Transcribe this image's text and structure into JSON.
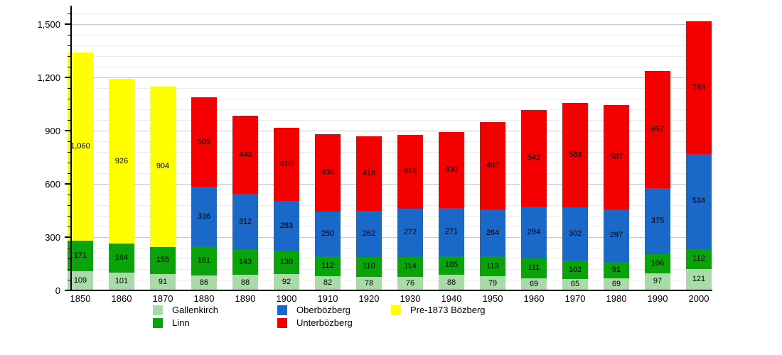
{
  "chart_data": {
    "type": "bar",
    "stacked": true,
    "title": "",
    "xlabel": "",
    "ylabel": "",
    "categories": [
      "1850",
      "1860",
      "1870",
      "1880",
      "1890",
      "1900",
      "1910",
      "1920",
      "1930",
      "1940",
      "1950",
      "1960",
      "1970",
      "1980",
      "1990",
      "2000"
    ],
    "series": [
      {
        "name": "Gallenkirch",
        "color": "#a9dba9",
        "values": [
          109,
          101,
          91,
          86,
          88,
          92,
          82,
          78,
          76,
          88,
          79,
          69,
          65,
          69,
          97,
          121
        ]
      },
      {
        "name": "Linn",
        "color": "#0aa30a",
        "values": [
          171,
          164,
          155,
          161,
          143,
          130,
          112,
          110,
          114,
          105,
          113,
          111,
          102,
          91,
          106,
          112
        ]
      },
      {
        "name": "Oberbözberg",
        "color": "#1a68c8",
        "values": [
          0,
          0,
          0,
          336,
          312,
          283,
          250,
          262,
          272,
          271,
          264,
          294,
          302,
          297,
          375,
          534
        ]
      },
      {
        "name": "Unterbözberg",
        "color": "#f40000",
        "values": [
          0,
          0,
          0,
          505,
          440,
          410,
          436,
          418,
          416,
          430,
          492,
          542,
          588,
          587,
          657,
          749
        ]
      },
      {
        "name": "Pre-1873 Bözberg",
        "color": "#ffff00",
        "values": [
          1060,
          926,
          904,
          0,
          0,
          0,
          0,
          0,
          0,
          0,
          0,
          0,
          0,
          0,
          0,
          0
        ]
      }
    ],
    "y_ticks": [
      0,
      300,
      600,
      900,
      1200,
      1500
    ],
    "ylim": [
      0,
      1580
    ],
    "minor_tick_step": 60,
    "grid": true,
    "legend_position": "bottom",
    "bar_value_labels": true,
    "axis_color": "#000000",
    "minor_grid_color": "#ebebeb",
    "major_grid_color": "#c9c9c9"
  },
  "legend": {
    "columns": [
      [
        "Gallenkirch",
        "Linn"
      ],
      [
        "Oberbözberg",
        "Unterbözberg"
      ],
      [
        "Pre-1873 Bözberg"
      ]
    ]
  }
}
